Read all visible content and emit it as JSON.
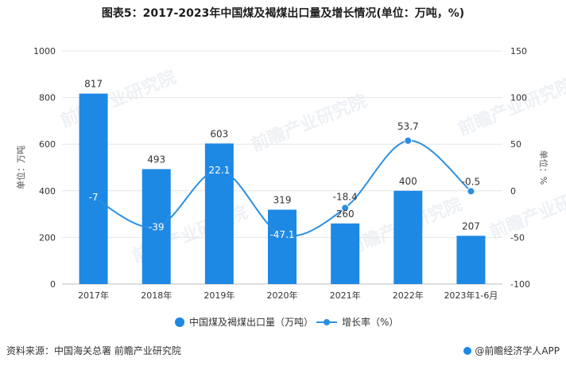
{
  "title": "图表5：2017-2023年中国煤及褐煤出口量及增长情况(单位：万吨，%)",
  "source": "资料来源：中国海关总署 前瞻产业研究院",
  "brand": "@前瞻经济学人APP",
  "watermark": "前瞻产业研究院",
  "colors": {
    "bar": "#1e88e5",
    "line": "#2b8fe0",
    "grid": "#e6e6e6",
    "text": "#333333"
  },
  "chart_data": {
    "type": "bar",
    "categories": [
      "2017年",
      "2018年",
      "2019年",
      "2020年",
      "2021年",
      "2022年",
      "2023年1-6月"
    ],
    "series": [
      {
        "name": "中国煤及褐煤出口量（万吨）",
        "type": "bar",
        "axis": "left",
        "values": [
          817,
          493,
          603,
          319,
          260,
          400,
          207
        ]
      },
      {
        "name": "增长率（%）",
        "type": "line",
        "axis": "right",
        "values": [
          -7,
          -39,
          22.1,
          -47.1,
          -18.4,
          53.7,
          -0.5
        ],
        "labels": [
          "-7",
          "-39",
          "22.1",
          "-47.1",
          "-18.4",
          "53.7",
          "-0.5"
        ]
      }
    ],
    "ylabel": "单位：万吨",
    "y2label": "单位：%",
    "ylim": [
      0,
      1000
    ],
    "y2lim": [
      -100,
      150
    ],
    "yticks": [
      0,
      200,
      400,
      600,
      800,
      1000
    ],
    "y2ticks": [
      -100,
      -50,
      0,
      50,
      100,
      150
    ],
    "grid": true,
    "legend": "bottom"
  }
}
